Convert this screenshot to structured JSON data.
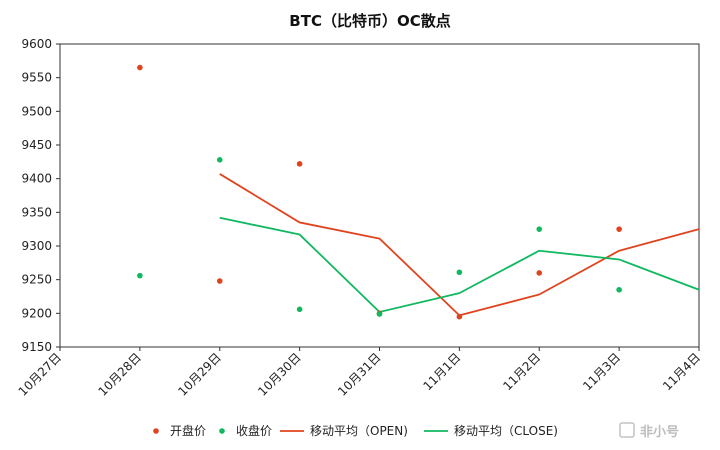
{
  "chart_data": {
    "type": "scatter",
    "title": "BTC（比特币）OC散点",
    "xlabel": "",
    "ylabel": "",
    "categories": [
      "10月27日",
      "10月28日",
      "10月29日",
      "10月30日",
      "10月31日",
      "11月1日",
      "11月2日",
      "11月3日",
      "11月4日"
    ],
    "ylim": [
      9150,
      9600
    ],
    "yticks": [
      9150,
      9200,
      9250,
      9300,
      9350,
      9400,
      9450,
      9500,
      9550,
      9600
    ],
    "grid": false,
    "legend_position": "bottom",
    "series": [
      {
        "name": "开盘价",
        "kind": "scatter",
        "color": "#e0441f",
        "x": [
          "10月28日",
          "10月29日",
          "10月30日",
          "10月31日",
          "11月1日",
          "11月2日",
          "11月3日"
        ],
        "values": [
          9565,
          9248,
          9422,
          9200,
          9195,
          9260,
          9325
        ]
      },
      {
        "name": "收盘价",
        "kind": "scatter",
        "color": "#10b860",
        "x": [
          "10月28日",
          "10月29日",
          "10月30日",
          "10月31日",
          "11月1日",
          "11月2日",
          "11月3日"
        ],
        "values": [
          9256,
          9428,
          9206,
          9199,
          9261,
          9325,
          9235
        ]
      },
      {
        "name": "移动平均（OPEN)",
        "kind": "line",
        "color": "#e0441f",
        "x": [
          "10月29日",
          "10月30日",
          "10月31日",
          "11月1日",
          "11月2日",
          "11月3日",
          "11月4日"
        ],
        "values": [
          9407,
          9335,
          9311,
          9197,
          9228,
          9293,
          9325
        ]
      },
      {
        "name": "移动平均（CLOSE)",
        "kind": "line",
        "color": "#10b860",
        "x": [
          "10月29日",
          "10月30日",
          "10月31日",
          "11月1日",
          "11月2日",
          "11月3日",
          "11月4日"
        ],
        "values": [
          9342,
          9317,
          9202,
          9230,
          9293,
          9280,
          9235
        ]
      }
    ]
  },
  "watermark": {
    "text": "非小号",
    "icon": "feixiaohao-logo-icon"
  }
}
